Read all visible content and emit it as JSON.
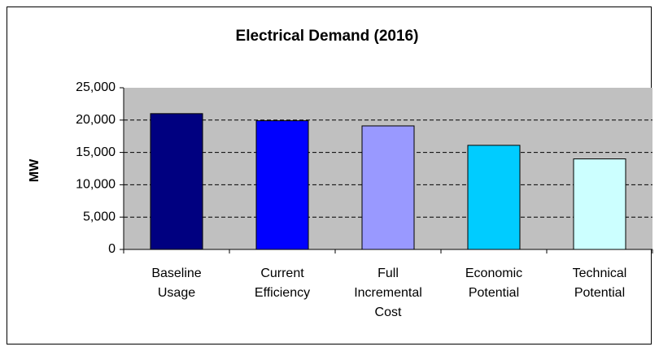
{
  "chart_data": {
    "type": "bar",
    "title": "Electrical Demand (2016)",
    "y_label": "MW",
    "categories": [
      "Baseline Usage",
      "Current Efficiency",
      "Full Incremental Cost",
      "Economic Potential",
      "Technical Potential"
    ],
    "values": [
      21000,
      19900,
      19100,
      16100,
      14000
    ],
    "colors": [
      "#000080",
      "#0000ff",
      "#9999ff",
      "#00ccff",
      "#ccffff"
    ],
    "ylim": [
      0,
      25000
    ],
    "yticks": [
      0,
      {
        "value": 5000,
        "label": "5,000"
      },
      {
        "value": 10000,
        "label": "10,000"
      },
      {
        "value": 15000,
        "label": "15,000"
      },
      {
        "value": 20000,
        "label": "20,000"
      },
      {
        "value": 25000,
        "label": "25,000"
      }
    ],
    "grid": true
  }
}
